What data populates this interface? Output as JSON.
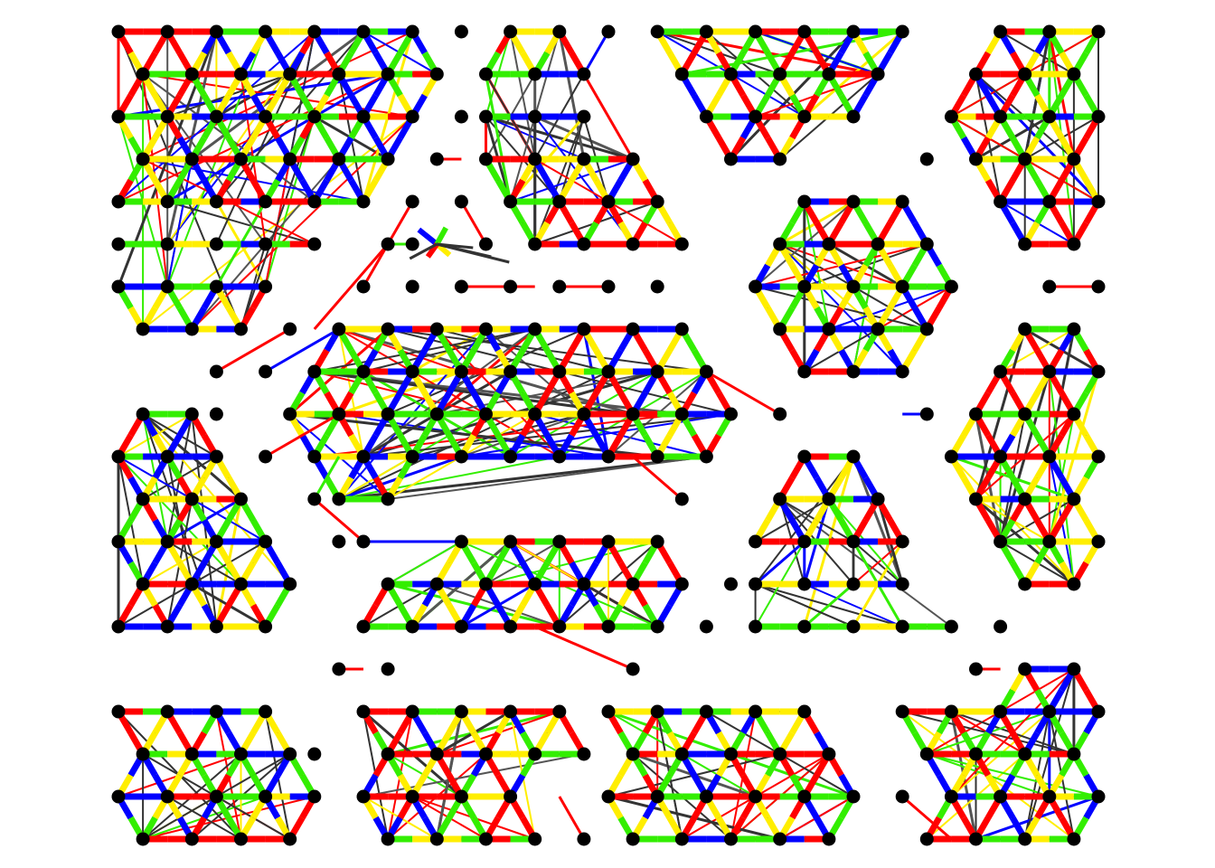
{
  "diagram": {
    "kind": "triangular-lattice-graph-clusters",
    "colors": {
      "background": "#ffffff",
      "node": "#000000",
      "edge_red": "#ff0000",
      "edge_blue": "#0000ff",
      "edge_green": "#33ee00",
      "edge_yellow": "#ffee00",
      "edge_dark": "#333333",
      "edge_gray": "#555555"
    },
    "edge_palette": [
      "red",
      "blue",
      "green",
      "yellow"
    ],
    "clusters": [
      {
        "name": "cluster-top-left",
        "shape": "parallelogram-stack",
        "rows": 8,
        "dense_links": true
      },
      {
        "name": "cluster-top-mid",
        "shape": "parallelogram",
        "rows": 6,
        "dense_links": true
      },
      {
        "name": "cluster-top-right-trapezoid",
        "shape": "inverted-trapezoid",
        "rows": 4,
        "dense_links": true
      },
      {
        "name": "cluster-top-far-right",
        "shape": "hexagon-tall",
        "rows": 6,
        "dense_links": true
      },
      {
        "name": "cluster-center-hexagon",
        "shape": "hexagon",
        "rows": 5,
        "dense_links": true
      },
      {
        "name": "cluster-center-band",
        "shape": "hexagon-wide",
        "rows": 5,
        "dense_links": true
      },
      {
        "name": "cluster-mid-right",
        "shape": "hexagon-tall",
        "rows": 7,
        "dense_links": true
      },
      {
        "name": "cluster-mid-left",
        "shape": "trapezoid-tall",
        "rows": 6,
        "dense_links": true
      },
      {
        "name": "cluster-bottom-center",
        "shape": "trapezoid",
        "rows": 3,
        "dense_links": true
      },
      {
        "name": "cluster-bottom-right-triangle",
        "shape": "triangle",
        "rows": 5,
        "dense_links": true
      },
      {
        "name": "cluster-bottom-row-1",
        "shape": "parallelogram",
        "rows": 4,
        "dense_links": true
      },
      {
        "name": "cluster-bottom-row-2",
        "shape": "parallelogram",
        "rows": 4,
        "dense_links": true
      },
      {
        "name": "cluster-bottom-row-3",
        "shape": "parallelogram",
        "rows": 4,
        "dense_links": true
      },
      {
        "name": "cluster-bottom-row-4",
        "shape": "trapezoid",
        "rows": 5,
        "dense_links": true
      }
    ]
  }
}
